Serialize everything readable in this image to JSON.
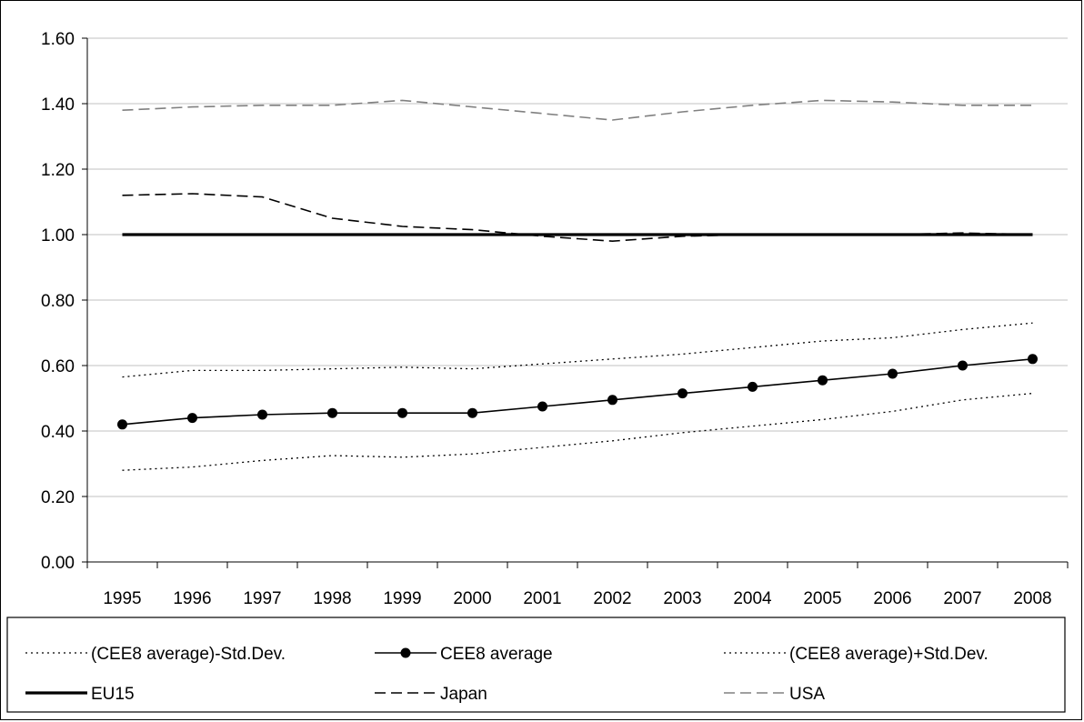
{
  "chart_data": {
    "type": "line",
    "ylim": [
      0,
      1.6
    ],
    "y_ticks": [
      "0.00",
      "0.20",
      "0.40",
      "0.60",
      "0.80",
      "1.00",
      "1.20",
      "1.40",
      "1.60"
    ],
    "y_tick_values": [
      0,
      0.2,
      0.4,
      0.6,
      0.8,
      1.0,
      1.2,
      1.4,
      1.6
    ],
    "categories": [
      "1995",
      "1996",
      "1997",
      "1998",
      "1999",
      "2000",
      "2001",
      "2002",
      "2003",
      "2004",
      "2005",
      "2006",
      "2007",
      "2008"
    ],
    "grid": "horizontal",
    "legend_position": "bottom",
    "series": [
      {
        "name": "(CEE8 average)-Std.Dev.",
        "style": "dotted",
        "color": "#000000",
        "values": [
          0.28,
          0.29,
          0.31,
          0.325,
          0.32,
          0.33,
          0.35,
          0.37,
          0.395,
          0.415,
          0.435,
          0.46,
          0.495,
          0.515
        ]
      },
      {
        "name": "CEE8 average",
        "style": "solid-marker",
        "color": "#000000",
        "values": [
          0.42,
          0.44,
          0.45,
          0.455,
          0.455,
          0.455,
          0.475,
          0.495,
          0.515,
          0.535,
          0.555,
          0.575,
          0.6,
          0.62
        ]
      },
      {
        "name": "(CEE8 average)+Std.Dev.",
        "style": "dotted",
        "color": "#000000",
        "values": [
          0.565,
          0.585,
          0.585,
          0.59,
          0.595,
          0.59,
          0.605,
          0.62,
          0.635,
          0.655,
          0.675,
          0.685,
          0.71,
          0.73
        ]
      },
      {
        "name": "EU15",
        "style": "thick-solid",
        "color": "#000000",
        "values": [
          1.0,
          1.0,
          1.0,
          1.0,
          1.0,
          1.0,
          1.0,
          1.0,
          1.0,
          1.0,
          1.0,
          1.0,
          1.0,
          1.0
        ]
      },
      {
        "name": "Japan",
        "style": "dashed",
        "color": "#000000",
        "values": [
          1.12,
          1.125,
          1.115,
          1.05,
          1.025,
          1.015,
          0.995,
          0.98,
          0.995,
          1.0,
          1.0,
          1.0,
          1.005,
          1.0
        ]
      },
      {
        "name": "USA",
        "style": "dashed",
        "color": "#808080",
        "values": [
          1.38,
          1.39,
          1.395,
          1.395,
          1.41,
          1.39,
          1.37,
          1.35,
          1.375,
          1.395,
          1.41,
          1.405,
          1.395,
          1.395
        ]
      }
    ]
  }
}
